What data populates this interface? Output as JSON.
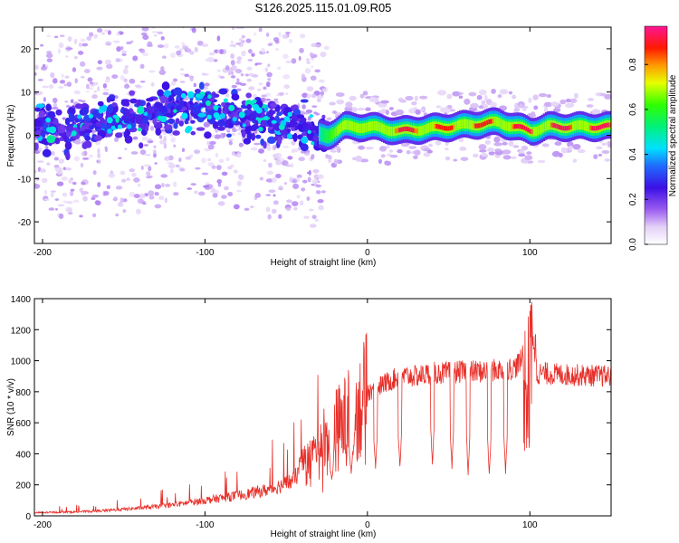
{
  "title": "S126.2025.115.01.09.R05",
  "colors": {
    "snr_line": "#e8302a",
    "axis": "#000000",
    "background": "#ffffff"
  },
  "chart_data": [
    {
      "type": "heatmap",
      "xlabel": "Height of straight line (km)",
      "ylabel": "Frequency (Hz)",
      "xlim": [
        -205,
        150
      ],
      "ylim": [
        -25,
        25
      ],
      "xticks": [
        -200,
        -100,
        0,
        100
      ],
      "yticks": [
        -20,
        -10,
        0,
        10,
        20
      ],
      "grid": false,
      "colorbar": {
        "label": "Normalized spectral amplitude",
        "ticks": [
          "0.0",
          "0.2",
          "0.4",
          "0.6",
          "0.8"
        ],
        "range": [
          0,
          0.97
        ],
        "colormap": "rainbow (white-violet-blue-cyan-green-yellow-orange-red-magenta)"
      },
      "ridge": {
        "description_x": [
          -205,
          -180,
          -150,
          -120,
          -100,
          -80,
          -60,
          -40,
          -30,
          -25,
          -15,
          0,
          20,
          50,
          80,
          100,
          110,
          150
        ],
        "center_frequency_hz": [
          1,
          2,
          3,
          6,
          7,
          5,
          3,
          2,
          0,
          0,
          2,
          2,
          1,
          2,
          3,
          1,
          2,
          2
        ],
        "peak_amplitude": [
          0.3,
          0.3,
          0.35,
          0.45,
          0.4,
          0.4,
          0.35,
          0.3,
          0.5,
          0.6,
          0.75,
          0.85,
          0.95,
          0.9,
          0.92,
          0.95,
          0.96,
          0.96
        ]
      }
    },
    {
      "type": "line",
      "xlabel": "Height of straight line (km)",
      "ylabel": "SNR (10 * v/v)",
      "xlim": [
        -205,
        150
      ],
      "ylim": [
        0,
        1400
      ],
      "xticks": [
        -200,
        -100,
        0,
        100
      ],
      "yticks": [
        0,
        200,
        400,
        600,
        800,
        1000,
        1200,
        1400
      ],
      "grid": false,
      "series": [
        {
          "x": [
            -205,
            -180,
            -160,
            -140,
            -120,
            -100,
            -80,
            -60,
            -45,
            -40,
            -35,
            -30,
            -25,
            -20,
            -15,
            -10,
            -5,
            0,
            10,
            20,
            30,
            40,
            50,
            60,
            70,
            80,
            90,
            95,
            100,
            105,
            120,
            150
          ],
          "values": [
            20,
            25,
            35,
            50,
            70,
            100,
            130,
            170,
            230,
            350,
            400,
            450,
            500,
            550,
            600,
            650,
            700,
            800,
            850,
            900,
            900,
            920,
            920,
            930,
            930,
            940,
            950,
            1000,
            1380,
            920,
            910,
            900
          ]
        }
      ],
      "dropouts": [
        {
          "x": -22,
          "min": 200
        },
        {
          "x": -10,
          "min": 250
        },
        {
          "x": 5,
          "min": 300
        },
        {
          "x": 20,
          "min": 300
        },
        {
          "x": 40,
          "min": 330
        },
        {
          "x": 52,
          "min": 300
        },
        {
          "x": 62,
          "min": 260
        },
        {
          "x": 75,
          "min": 250
        },
        {
          "x": 85,
          "min": 260
        },
        {
          "x": 100,
          "min": 390
        }
      ]
    }
  ]
}
